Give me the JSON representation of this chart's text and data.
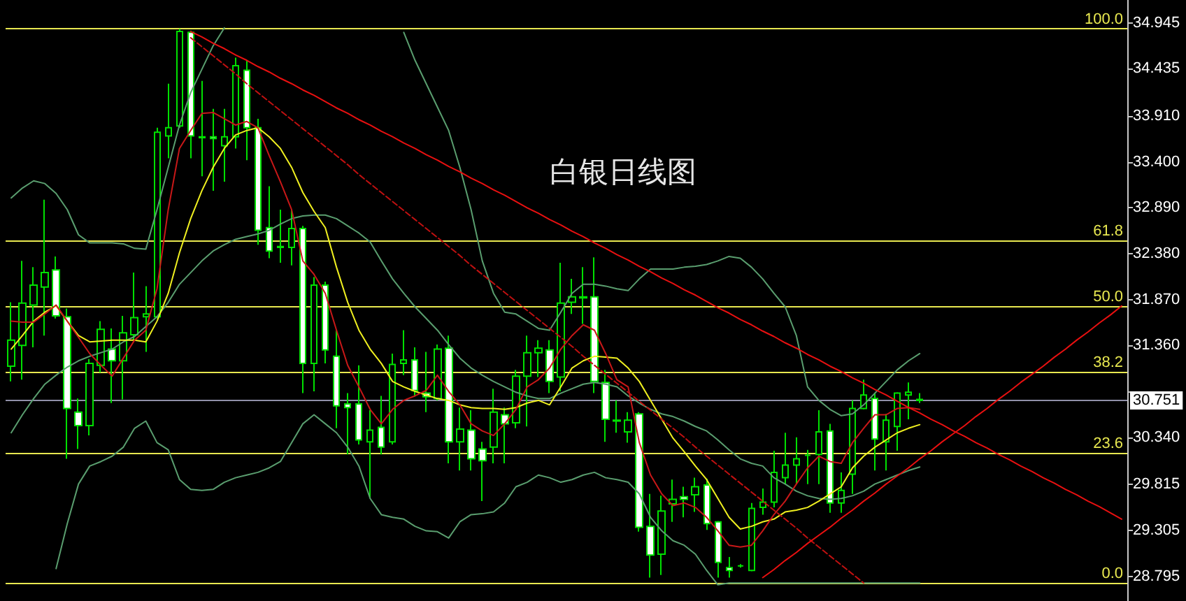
{
  "chart_data": {
    "type": "candlestick",
    "title": "白银日线图",
    "categories": [
      null,
      null,
      null,
      null,
      null,
      null,
      null,
      null,
      null,
      null,
      null,
      null,
      null,
      null,
      null,
      null,
      null,
      null,
      null,
      null,
      null,
      null,
      null,
      null,
      null,
      null,
      null,
      null,
      null,
      null,
      null,
      null,
      null,
      null,
      null,
      null,
      null,
      null,
      null,
      null,
      null,
      null,
      null,
      null,
      null,
      null,
      null,
      null,
      null,
      null,
      null,
      null,
      null,
      null,
      null,
      null,
      null,
      null,
      null,
      null,
      null,
      null,
      null,
      null,
      null,
      null,
      null,
      null,
      null,
      null,
      null,
      null,
      null,
      null,
      null,
      null,
      null,
      null,
      null,
      null,
      null,
      null,
      null,
      null,
      null,
      null,
      null,
      null,
      null,
      null,
      null,
      null,
      null,
      null,
      null,
      null,
      null,
      null,
      null,
      null
    ],
    "ylim": [
      28.52,
      35.2
    ],
    "yticks": [
      {
        "value": 34.945,
        "label": "34.945"
      },
      {
        "value": 34.435,
        "label": "34.435"
      },
      {
        "value": 33.91,
        "label": "33.910"
      },
      {
        "value": 33.4,
        "label": "33.400"
      },
      {
        "value": 32.89,
        "label": "32.890"
      },
      {
        "value": 32.38,
        "label": "32.380"
      },
      {
        "value": 31.87,
        "label": "31.870"
      },
      {
        "value": 31.36,
        "label": "31.360"
      },
      {
        "value": 30.85,
        "label": null
      },
      {
        "value": 30.34,
        "label": "30.340"
      },
      {
        "value": 29.815,
        "label": "29.815"
      },
      {
        "value": 29.305,
        "label": "29.305"
      },
      {
        "value": 28.795,
        "label": "28.795"
      }
    ],
    "tick_labels": "y",
    "marker": "none",
    "line_style": "solid",
    "annotations": [
      {
        "text": "100.0",
        "y": 34.88
      },
      {
        "text": "61.8",
        "y": 32.53
      },
      {
        "text": "50.0",
        "y": 31.8
      },
      {
        "text": "38.2",
        "y": 31.07
      },
      {
        "text": "23.6",
        "y": 30.17
      },
      {
        "text": "0.0",
        "y": 28.72
      }
    ],
    "ref_lines": [
      {
        "axis": "y",
        "value": 34.88,
        "color": "#e8e850"
      },
      {
        "axis": "y",
        "value": 32.53,
        "color": "#e8e850"
      },
      {
        "axis": "y",
        "value": 31.8,
        "color": "#e8e850"
      },
      {
        "axis": "y",
        "value": 31.07,
        "color": "#e8e850"
      },
      {
        "axis": "y",
        "value": 30.17,
        "color": "#e8e850"
      },
      {
        "axis": "y",
        "value": 28.72,
        "color": "#e8e850"
      },
      {
        "axis": "y",
        "value": 30.751,
        "label": "30.751",
        "color": "#9090a8"
      }
    ],
    "series": [
      {
        "color": "#00e000",
        "ohlc": [
          [
            31.13,
            31.84,
            30.96,
            31.42
          ],
          [
            31.36,
            32.3,
            30.98,
            31.83
          ],
          [
            31.81,
            32.23,
            31.34,
            32.03
          ],
          [
            32.01,
            32.98,
            31.47,
            32.17
          ],
          [
            32.2,
            32.35,
            31.66,
            31.69
          ],
          [
            31.68,
            31.77,
            30.1,
            30.66
          ],
          [
            30.62,
            30.77,
            30.21,
            30.47
          ],
          [
            30.47,
            31.21,
            30.36,
            31.16
          ],
          [
            31.14,
            31.63,
            31.06,
            31.54
          ],
          [
            31.32,
            31.55,
            30.72,
            31.19
          ],
          [
            31.19,
            31.69,
            30.76,
            31.5
          ],
          [
            31.48,
            32.17,
            31.42,
            31.67
          ],
          [
            31.68,
            32.02,
            31.29,
            31.71
          ],
          [
            31.68,
            33.78,
            31.66,
            33.73
          ],
          [
            33.69,
            34.27,
            33.44,
            33.78
          ],
          [
            33.8,
            34.88,
            33.78,
            34.85
          ],
          [
            34.84,
            34.86,
            33.44,
            33.69
          ],
          [
            33.68,
            34.3,
            33.24,
            33.67
          ],
          [
            33.68,
            33.99,
            33.08,
            33.66
          ],
          [
            33.58,
            33.99,
            33.18,
            33.68
          ],
          [
            33.68,
            34.56,
            33.55,
            34.47
          ],
          [
            34.42,
            34.53,
            33.42,
            33.78
          ],
          [
            33.78,
            33.88,
            32.48,
            32.64
          ],
          [
            32.67,
            33.13,
            32.33,
            32.41
          ],
          [
            32.46,
            32.87,
            32.28,
            32.45
          ],
          [
            32.45,
            32.87,
            32.25,
            32.66
          ],
          [
            32.66,
            32.69,
            30.83,
            31.16
          ],
          [
            31.16,
            32.12,
            30.85,
            32.03
          ],
          [
            32.03,
            32.07,
            31.16,
            31.31
          ],
          [
            31.24,
            31.53,
            30.44,
            30.69
          ],
          [
            30.71,
            30.83,
            30.15,
            30.67
          ],
          [
            30.71,
            31.14,
            30.26,
            30.31
          ],
          [
            30.29,
            30.64,
            29.66,
            30.42
          ],
          [
            30.45,
            30.8,
            30.15,
            30.23
          ],
          [
            30.29,
            31.27,
            30.26,
            31.15
          ],
          [
            31.16,
            31.53,
            31.03,
            31.2
          ],
          [
            31.2,
            31.34,
            30.79,
            30.86
          ],
          [
            30.83,
            31.29,
            30.62,
            30.79
          ],
          [
            30.77,
            31.37,
            30.75,
            31.32
          ],
          [
            31.33,
            31.47,
            30.05,
            30.29
          ],
          [
            30.29,
            30.67,
            29.97,
            30.43
          ],
          [
            30.42,
            30.64,
            29.97,
            30.1
          ],
          [
            30.21,
            30.29,
            29.63,
            30.08
          ],
          [
            30.23,
            30.88,
            30.05,
            30.62
          ],
          [
            30.59,
            30.67,
            30.05,
            30.49
          ],
          [
            30.5,
            31.09,
            30.44,
            31.02
          ],
          [
            31.02,
            31.47,
            30.46,
            31.28
          ],
          [
            31.28,
            31.42,
            31.01,
            31.33
          ],
          [
            31.31,
            31.42,
            30.83,
            30.96
          ],
          [
            31.01,
            32.28,
            30.85,
            31.83
          ],
          [
            31.84,
            32.1,
            31.71,
            31.9
          ],
          [
            31.9,
            32.23,
            31.6,
            31.89
          ],
          [
            31.9,
            32.34,
            30.83,
            30.96
          ],
          [
            30.95,
            31.09,
            30.29,
            30.54
          ],
          [
            30.53,
            30.75,
            30.39,
            30.52
          ],
          [
            30.4,
            30.62,
            30.28,
            30.53
          ],
          [
            30.6,
            30.62,
            29.29,
            29.34
          ],
          [
            29.35,
            29.71,
            28.78,
            29.03
          ],
          [
            29.04,
            29.69,
            28.81,
            29.52
          ],
          [
            29.6,
            29.87,
            29.4,
            29.65
          ],
          [
            29.68,
            29.79,
            29.45,
            29.65
          ],
          [
            29.7,
            29.89,
            29.51,
            29.79
          ],
          [
            29.81,
            29.88,
            29.31,
            29.38
          ],
          [
            29.4,
            29.41,
            28.78,
            28.95
          ],
          [
            28.89,
            29.01,
            28.78,
            28.86
          ],
          [
            28.91,
            28.93,
            28.89,
            28.91
          ],
          [
            28.86,
            29.61,
            28.85,
            29.55
          ],
          [
            29.56,
            29.77,
            29.48,
            29.62
          ],
          [
            29.62,
            30.19,
            29.56,
            29.95
          ],
          [
            29.89,
            30.39,
            29.82,
            30.03
          ],
          [
            30.03,
            30.34,
            29.82,
            30.1
          ],
          [
            30.14,
            30.2,
            29.82,
            30.14
          ],
          [
            30.15,
            30.64,
            29.82,
            30.4
          ],
          [
            30.41,
            30.49,
            29.5,
            29.61
          ],
          [
            29.61,
            29.95,
            29.5,
            29.75
          ],
          [
            29.93,
            30.75,
            29.71,
            30.66
          ],
          [
            30.66,
            30.98,
            30.65,
            30.81
          ],
          [
            30.77,
            30.83,
            29.97,
            30.32
          ],
          [
            30.29,
            30.6,
            29.97,
            30.53
          ],
          [
            30.46,
            30.84,
            30.19,
            30.83
          ],
          [
            30.81,
            30.95,
            30.54,
            30.84
          ],
          [
            30.76,
            30.83,
            30.72,
            30.75
          ],
          null,
          null,
          null,
          null,
          null,
          null,
          null,
          null,
          null,
          null,
          null,
          null,
          null,
          null,
          null,
          null,
          null,
          null
        ]
      },
      {
        "type": "line",
        "color": "#5a9e6f",
        "values": [
          33.0,
          33.11,
          33.19,
          33.16,
          33.05,
          32.87,
          32.59,
          32.5,
          32.5,
          32.5,
          32.49,
          32.44,
          32.43,
          32.87,
          33.34,
          33.81,
          34.17,
          34.43,
          34.69,
          34.89,
          null,
          null,
          null,
          null,
          null,
          null,
          null,
          null,
          null,
          null,
          null,
          null,
          null,
          null,
          null,
          34.84,
          34.53,
          34.27,
          34.01,
          33.75,
          33.34,
          32.87,
          32.3,
          31.94,
          31.73,
          31.71,
          31.63,
          31.55,
          31.53,
          31.73,
          31.94,
          32.04,
          32.04,
          32.02,
          31.99,
          31.97,
          32.1,
          32.21,
          32.21,
          32.21,
          32.23,
          32.24,
          32.26,
          32.3,
          32.35,
          32.33,
          32.23,
          32.1,
          31.94,
          31.79,
          31.47,
          30.9,
          30.75,
          30.65,
          30.58,
          30.6,
          30.7,
          30.83,
          30.96,
          31.09,
          31.19,
          31.27,
          null,
          null,
          null,
          null,
          null,
          null,
          null,
          null,
          null,
          null,
          null,
          null,
          null,
          null,
          null,
          null,
          null,
          null
        ]
      },
      {
        "type": "line",
        "color": "#5a9e6f",
        "values": [
          30.39,
          30.59,
          30.77,
          30.93,
          31.03,
          31.12,
          31.19,
          31.24,
          31.28,
          31.32,
          31.4,
          31.46,
          31.57,
          31.68,
          31.84,
          32.04,
          32.17,
          32.3,
          32.41,
          32.48,
          32.54,
          32.57,
          32.6,
          32.64,
          32.71,
          32.77,
          32.8,
          32.81,
          32.81,
          32.77,
          32.69,
          32.61,
          32.51,
          32.3,
          32.1,
          31.94,
          31.79,
          31.66,
          31.53,
          31.37,
          31.22,
          31.11,
          31.03,
          30.96,
          30.9,
          30.84,
          30.8,
          30.77,
          30.77,
          30.83,
          30.88,
          30.93,
          30.95,
          30.93,
          30.9,
          30.8,
          30.72,
          30.65,
          30.6,
          30.57,
          30.52,
          30.46,
          30.41,
          30.31,
          30.2,
          30.1,
          30.05,
          30.02,
          29.89,
          29.82,
          29.74,
          29.69,
          29.66,
          29.65,
          29.66,
          29.69,
          29.74,
          29.82,
          29.87,
          29.92,
          29.97,
          30.01,
          null,
          null,
          null,
          null,
          null,
          null,
          null,
          null,
          null,
          null,
          null,
          null,
          null,
          null,
          null,
          null,
          null,
          null
        ]
      },
      {
        "type": "line",
        "color": "#5a9e6f",
        "values": [
          null,
          null,
          null,
          null,
          28.88,
          29.38,
          29.82,
          30.02,
          30.07,
          30.13,
          30.23,
          30.44,
          30.52,
          30.28,
          30.2,
          29.87,
          29.76,
          29.75,
          29.76,
          29.84,
          29.89,
          29.92,
          29.95,
          30.0,
          30.07,
          30.28,
          30.49,
          30.59,
          30.49,
          30.39,
          30.23,
          30.02,
          29.66,
          29.48,
          29.45,
          29.43,
          29.35,
          29.3,
          29.29,
          29.22,
          29.4,
          29.48,
          29.49,
          29.51,
          29.61,
          29.79,
          29.84,
          29.92,
          29.89,
          29.84,
          29.87,
          29.92,
          29.95,
          29.89,
          29.87,
          29.84,
          29.71,
          29.45,
          29.3,
          29.19,
          29.14,
          29.04,
          28.86,
          28.7,
          28.72,
          28.72,
          28.72,
          28.72,
          28.72,
          28.72,
          28.72,
          28.72,
          28.72,
          28.72,
          28.72,
          28.72,
          28.72,
          28.72,
          28.72,
          28.72,
          28.72,
          28.72,
          null,
          null,
          null,
          null,
          null,
          null,
          null,
          null,
          null,
          null,
          null,
          null,
          null,
          null,
          null,
          null,
          null,
          null
        ]
      },
      {
        "type": "line",
        "color": "#f0f020",
        "values": [
          31.32,
          31.47,
          31.63,
          31.73,
          31.8,
          31.63,
          31.47,
          31.4,
          31.41,
          31.42,
          31.42,
          31.42,
          31.4,
          31.63,
          31.94,
          32.39,
          32.77,
          33.08,
          33.34,
          33.55,
          33.7,
          33.75,
          33.78,
          33.68,
          33.55,
          33.34,
          33.06,
          32.85,
          32.67,
          32.23,
          31.84,
          31.53,
          31.32,
          31.16,
          30.96,
          30.9,
          30.85,
          30.81,
          30.77,
          30.75,
          30.7,
          30.67,
          30.66,
          30.66,
          30.65,
          30.67,
          30.72,
          30.75,
          30.7,
          30.9,
          31.11,
          31.19,
          31.24,
          31.23,
          31.22,
          31.11,
          30.96,
          30.75,
          30.54,
          30.33,
          30.18,
          30.02,
          29.87,
          29.66,
          29.45,
          29.32,
          29.35,
          29.4,
          29.43,
          29.51,
          29.53,
          29.56,
          29.63,
          29.71,
          29.79,
          30.0,
          30.13,
          30.23,
          30.31,
          30.39,
          30.44,
          30.48,
          null,
          null,
          null,
          null,
          null,
          null,
          null,
          null,
          null,
          null,
          null,
          null,
          null,
          null,
          null,
          null,
          null,
          null
        ]
      },
      {
        "type": "line",
        "color": "#c81818",
        "values": [
          31.63,
          31.62,
          31.62,
          31.71,
          31.81,
          31.63,
          31.45,
          31.27,
          31.14,
          31.02,
          31.22,
          31.42,
          31.53,
          31.99,
          32.87,
          33.55,
          33.75,
          33.94,
          33.95,
          33.88,
          33.81,
          33.85,
          33.78,
          33.47,
          33.18,
          32.87,
          32.3,
          32.15,
          31.94,
          31.53,
          31.14,
          30.9,
          30.65,
          30.49,
          30.65,
          30.75,
          30.8,
          30.86,
          31.03,
          30.85,
          30.7,
          30.49,
          30.41,
          30.36,
          30.49,
          30.65,
          30.9,
          30.98,
          31.11,
          31.32,
          31.47,
          31.59,
          31.53,
          31.27,
          30.98,
          30.9,
          30.28,
          29.92,
          29.71,
          29.58,
          29.61,
          29.56,
          29.45,
          29.3,
          29.14,
          29.12,
          29.14,
          29.3,
          29.48,
          29.63,
          29.82,
          30.0,
          30.13,
          30.07,
          30.05,
          30.28,
          30.44,
          30.59,
          30.59,
          30.66,
          30.67,
          30.65,
          null,
          null,
          null,
          null,
          null,
          null,
          null,
          null,
          null,
          null,
          null,
          null,
          null,
          null,
          null,
          null,
          null,
          null
        ]
      },
      {
        "type": "line",
        "color": "#e81010",
        "values": [
          null,
          null,
          null,
          null,
          null,
          null,
          null,
          null,
          null,
          null,
          null,
          null,
          null,
          null,
          null,
          null,
          34.85,
          34.79,
          34.72,
          34.66,
          34.59,
          34.53,
          34.46,
          34.4,
          34.33,
          34.27,
          34.2,
          34.14,
          34.07,
          34.0,
          33.94,
          33.87,
          33.81,
          33.74,
          33.68,
          33.61,
          33.55,
          33.48,
          33.42,
          33.35,
          33.29,
          33.22,
          33.16,
          33.09,
          33.03,
          32.96,
          32.89,
          32.83,
          32.76,
          32.7,
          32.63,
          32.57,
          32.5,
          32.44,
          32.37,
          32.31,
          32.24,
          32.18,
          32.11,
          32.05,
          31.98,
          31.92,
          31.85,
          31.78,
          31.72,
          31.65,
          31.59,
          31.52,
          31.46,
          31.39,
          31.33,
          31.26,
          31.2,
          31.13,
          31.07,
          31.0,
          30.94,
          30.87,
          30.81,
          30.74,
          30.67,
          30.61,
          30.54,
          30.48,
          30.41,
          30.35,
          30.28,
          30.22,
          30.15,
          30.09,
          30.02,
          29.96,
          29.89,
          29.83,
          29.76,
          29.7,
          29.63,
          29.57,
          29.5,
          29.43
        ]
      },
      {
        "type": "line",
        "color": "#c01010",
        "line_style": "dashed",
        "values": [
          null,
          null,
          null,
          null,
          null,
          null,
          null,
          null,
          null,
          null,
          null,
          null,
          null,
          null,
          null,
          null,
          34.78,
          34.68,
          34.58,
          34.48,
          34.38,
          34.27,
          34.17,
          34.07,
          33.97,
          33.87,
          33.77,
          33.67,
          33.57,
          33.47,
          33.37,
          33.26,
          33.16,
          33.06,
          32.96,
          32.86,
          32.76,
          32.66,
          32.56,
          32.46,
          32.36,
          32.25,
          32.15,
          32.05,
          31.95,
          31.85,
          31.75,
          31.65,
          31.55,
          31.45,
          31.35,
          31.24,
          31.14,
          31.04,
          30.94,
          30.84,
          30.74,
          30.64,
          30.54,
          30.44,
          30.34,
          30.23,
          30.13,
          30.03,
          29.93,
          29.83,
          29.73,
          29.63,
          29.53,
          29.43,
          29.33,
          29.22,
          29.12,
          29.02,
          28.92,
          28.82,
          28.72,
          null,
          null,
          null,
          null,
          null,
          null,
          null,
          null,
          null,
          null,
          null,
          null,
          null,
          null,
          null,
          null,
          null,
          null,
          null,
          null,
          null,
          null,
          null
        ]
      },
      {
        "type": "line",
        "color": "#e81010",
        "values": [
          null,
          null,
          null,
          null,
          null,
          null,
          null,
          null,
          null,
          null,
          null,
          null,
          null,
          null,
          null,
          null,
          null,
          null,
          null,
          null,
          null,
          null,
          null,
          null,
          null,
          null,
          null,
          null,
          null,
          null,
          null,
          null,
          null,
          null,
          null,
          null,
          null,
          null,
          null,
          null,
          null,
          null,
          null,
          null,
          null,
          null,
          null,
          null,
          null,
          null,
          null,
          null,
          null,
          null,
          null,
          null,
          null,
          null,
          null,
          null,
          null,
          null,
          null,
          null,
          null,
          null,
          null,
          28.78,
          28.87,
          28.97,
          29.06,
          29.16,
          29.25,
          29.34,
          29.44,
          29.53,
          29.63,
          29.72,
          29.82,
          29.91,
          30.0,
          30.1,
          30.19,
          30.29,
          30.38,
          30.47,
          30.57,
          30.66,
          30.76,
          30.85,
          30.95,
          31.04,
          31.13,
          31.23,
          31.32,
          31.42,
          31.51,
          31.61,
          31.7,
          31.8
        ]
      }
    ]
  }
}
